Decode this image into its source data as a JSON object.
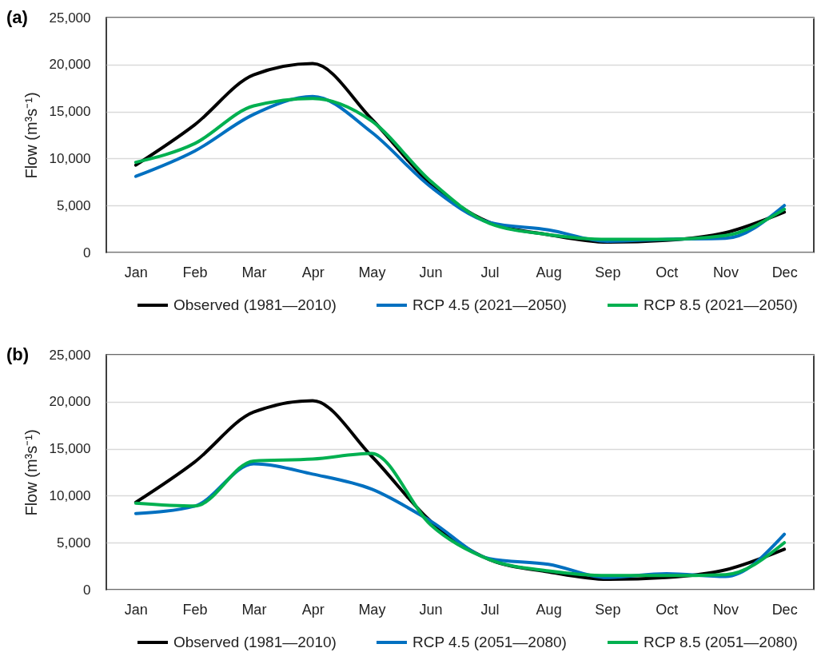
{
  "chart_data": [
    {
      "type": "line",
      "title": "(a)",
      "ylabel": "Flow (m³s⁻¹)",
      "categories": [
        "Jan",
        "Feb",
        "Mar",
        "Apr",
        "May",
        "Jun",
        "Jul",
        "Aug",
        "Sep",
        "Oct",
        "Nov",
        "Dec"
      ],
      "series": [
        {
          "name": "Observed (1981—2010)",
          "color": "#000000",
          "values": [
            9300,
            13600,
            18900,
            20100,
            14200,
            7300,
            3200,
            1900,
            1100,
            1300,
            2100,
            4300
          ]
        },
        {
          "name": "RCP 4.5 (2021—2050)",
          "color": "#0070c0",
          "values": [
            8100,
            10800,
            14700,
            16600,
            12800,
            7000,
            3200,
            2400,
            1200,
            1400,
            1500,
            5000
          ]
        },
        {
          "name": "RCP 8.5 (2021—2050)",
          "color": "#00b050",
          "values": [
            9600,
            11600,
            15600,
            16400,
            14000,
            7600,
            3100,
            1900,
            1400,
            1400,
            1800,
            4600
          ]
        }
      ],
      "ylim": [
        0,
        25000
      ],
      "yticks": [
        0,
        {
          "value": 5000,
          "label": "5,000"
        },
        {
          "value": 10000,
          "label": "10,000"
        },
        {
          "value": 15000,
          "label": "15,000"
        },
        {
          "value": 20000,
          "label": "20,000"
        },
        {
          "value": 25000,
          "label": "25,000"
        }
      ],
      "grid": "y",
      "legend": "bottom"
    },
    {
      "type": "line",
      "title": "(b)",
      "ylabel": "Flow (m³s⁻¹)",
      "categories": [
        "Jan",
        "Feb",
        "Mar",
        "Apr",
        "May",
        "Jun",
        "Jul",
        "Aug",
        "Sep",
        "Oct",
        "Nov",
        "Dec"
      ],
      "series": [
        {
          "name": "Observed (1981—2010)",
          "color": "#000000",
          "values": [
            9300,
            13600,
            18900,
            20100,
            14200,
            7300,
            3200,
            1900,
            1100,
            1300,
            2100,
            4300
          ]
        },
        {
          "name": "RCP 4.5 (2051—2080)",
          "color": "#0070c0",
          "values": [
            8100,
            8900,
            13400,
            12300,
            10700,
            7300,
            3300,
            2700,
            1300,
            1700,
            1400,
            5900
          ]
        },
        {
          "name": "RCP 8.5 (2051—2080)",
          "color": "#00b050",
          "values": [
            9200,
            8900,
            13700,
            13900,
            14500,
            6900,
            3200,
            2000,
            1500,
            1500,
            1600,
            5000
          ]
        }
      ],
      "ylim": [
        0,
        25000
      ],
      "yticks": [
        0,
        {
          "value": 5000,
          "label": "5,000"
        },
        {
          "value": 10000,
          "label": "10,000"
        },
        {
          "value": 15000,
          "label": "15,000"
        },
        {
          "value": 20000,
          "label": "20,000"
        },
        {
          "value": 25000,
          "label": "25,000"
        }
      ],
      "grid": "y",
      "legend": "bottom"
    }
  ]
}
